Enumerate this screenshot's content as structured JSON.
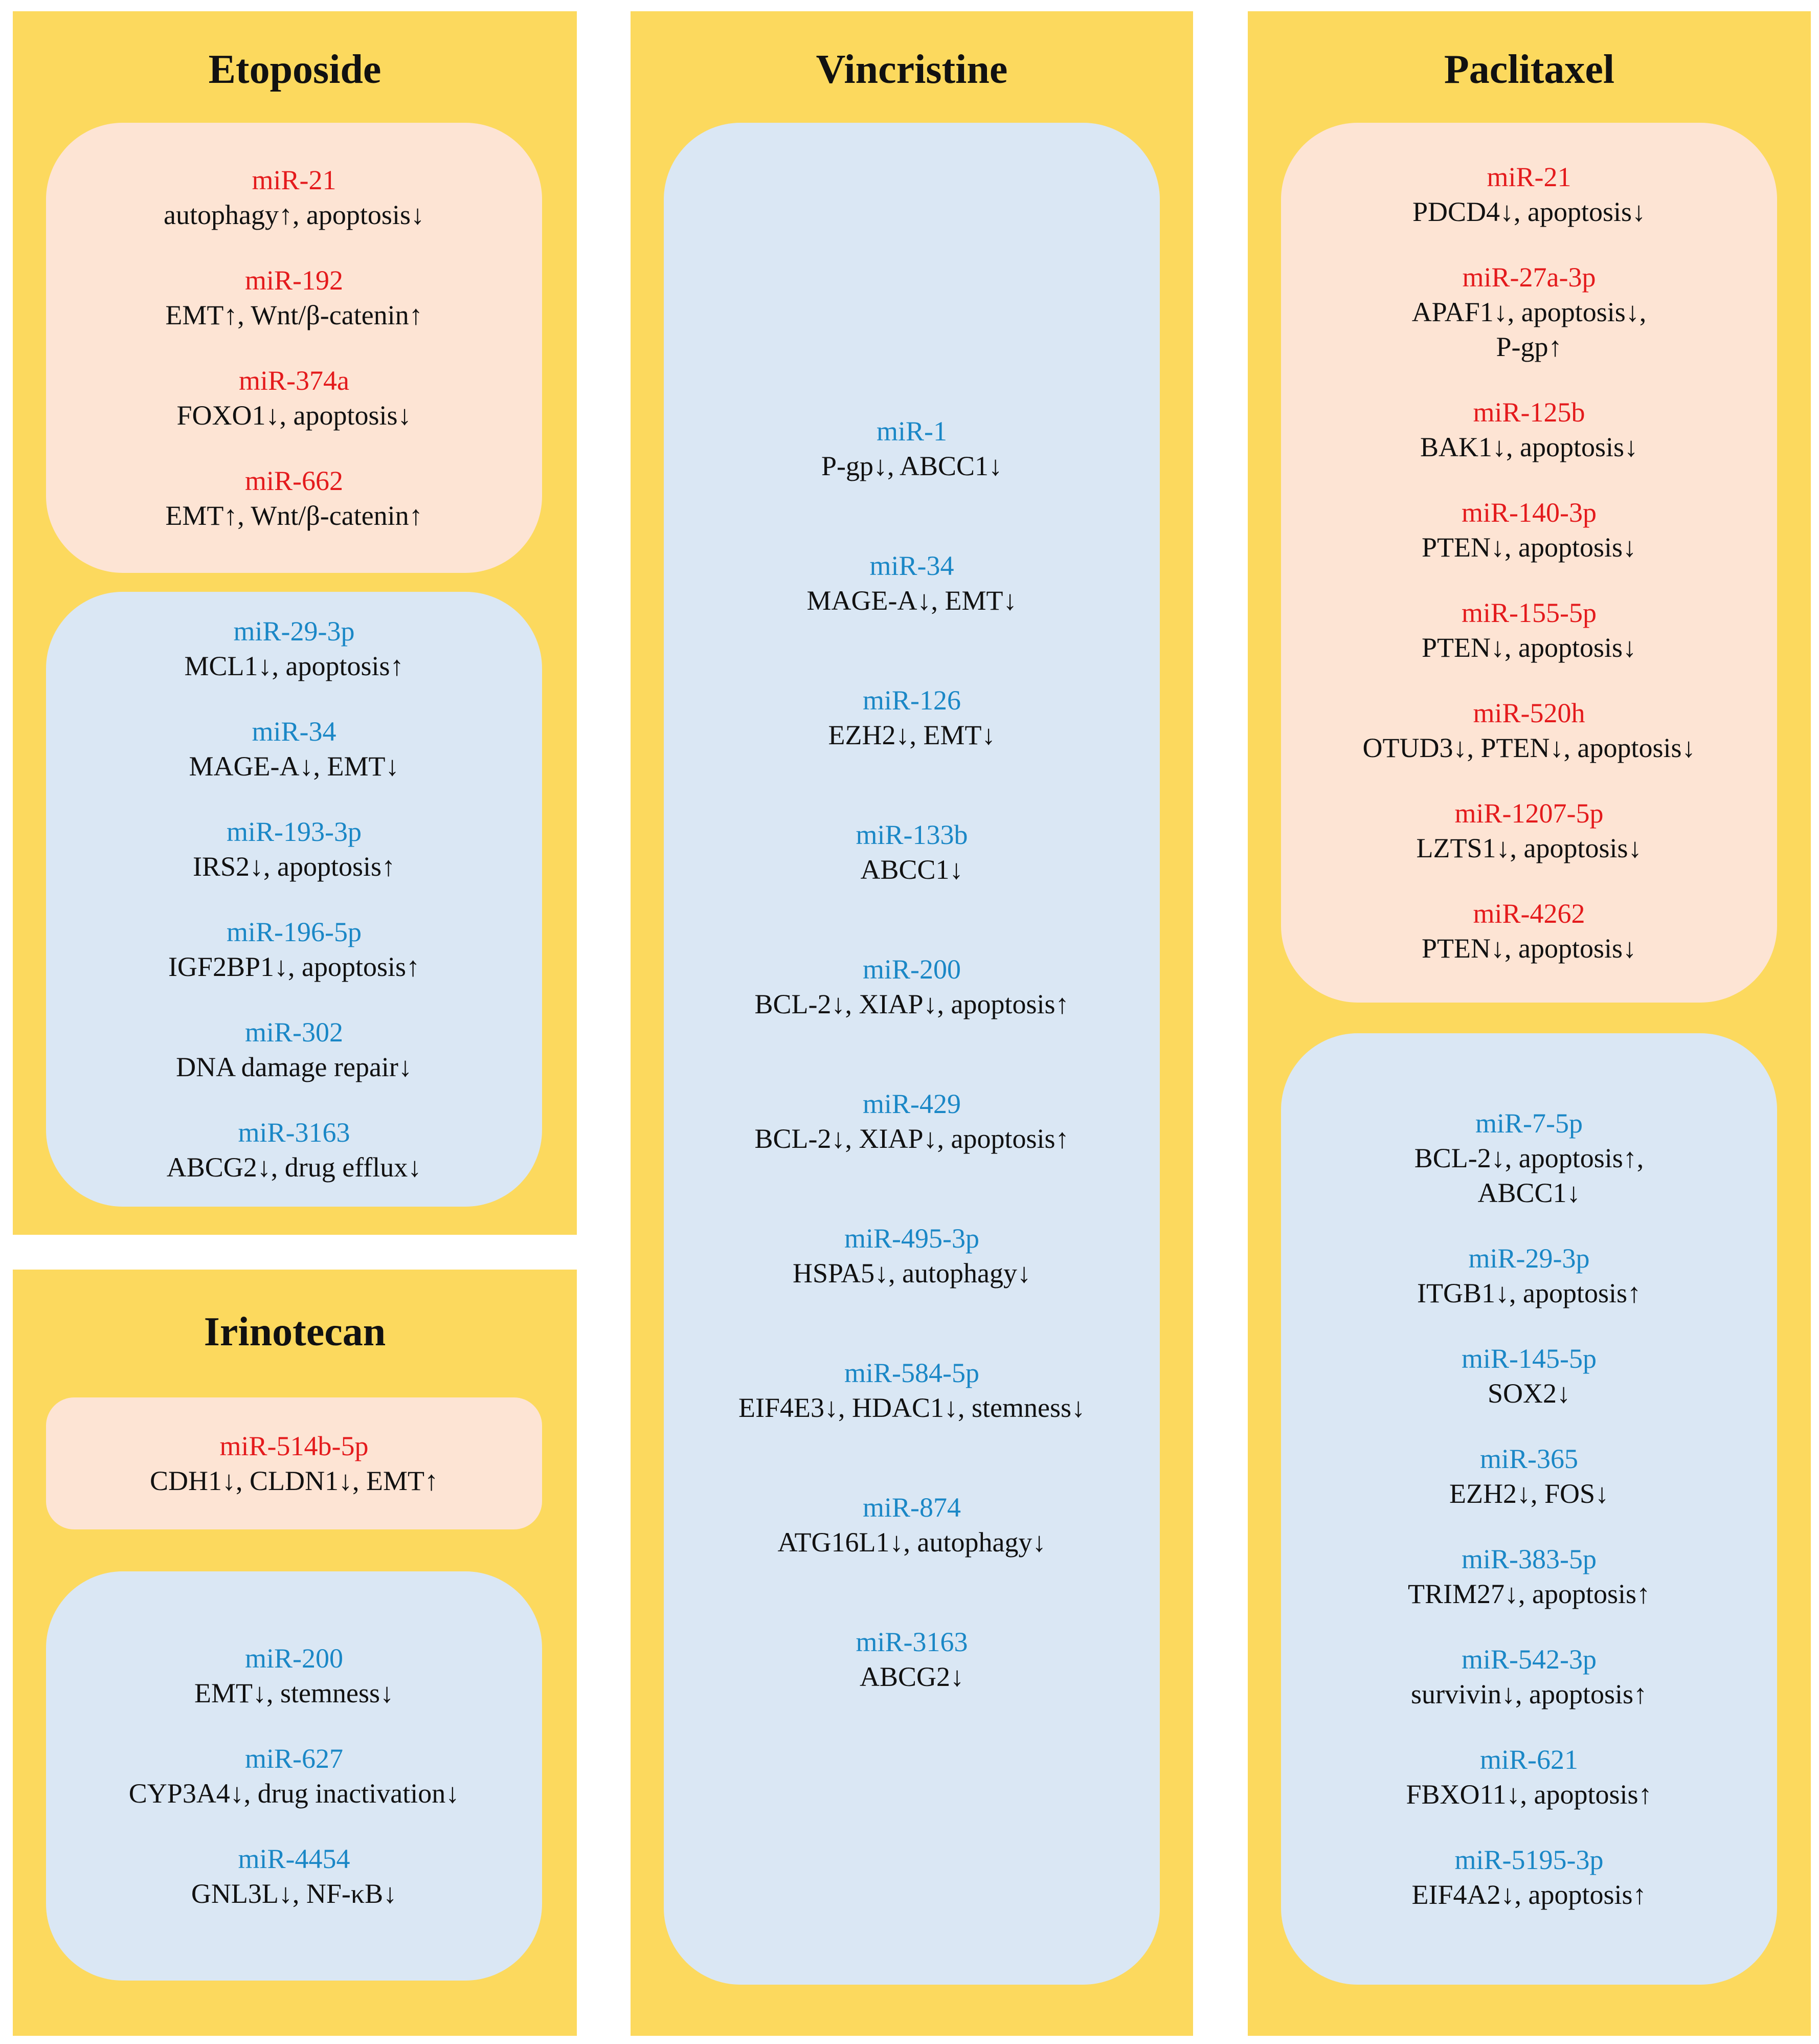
{
  "colors": {
    "panel": "#FCD95E",
    "up_box": "#FDE4D4",
    "down_box": "#DAE7F4",
    "up_text": "#E41A1C",
    "down_text": "#1A87C6"
  },
  "etoposide": {
    "title": "Etoposide",
    "up": [
      {
        "mir": "miR-21",
        "effect": [
          "autophagy↑, apoptosis↓"
        ]
      },
      {
        "mir": "miR-192",
        "effect": [
          "EMT↑, Wnt/β-catenin↑"
        ]
      },
      {
        "mir": "miR-374a",
        "effect": [
          "FOXO1↓, apoptosis↓"
        ]
      },
      {
        "mir": "miR-662",
        "effect": [
          "EMT↑, Wnt/β-catenin↑"
        ]
      }
    ],
    "down": [
      {
        "mir": "miR-29-3p",
        "effect": [
          "MCL1↓, apoptosis↑"
        ]
      },
      {
        "mir": "miR-34",
        "effect": [
          "MAGE-A↓, EMT↓"
        ]
      },
      {
        "mir": "miR-193-3p",
        "effect": [
          "IRS2↓, apoptosis↑"
        ]
      },
      {
        "mir": "miR-196-5p",
        "effect": [
          "IGF2BP1↓, apoptosis↑"
        ]
      },
      {
        "mir": "miR-302",
        "effect": [
          "DNA damage repair↓"
        ]
      },
      {
        "mir": "miR-3163",
        "effect": [
          "ABCG2↓, drug efflux↓"
        ]
      }
    ]
  },
  "irinotecan": {
    "title": "Irinotecan",
    "up": [
      {
        "mir": "miR-514b-5p",
        "effect": [
          "CDH1↓, CLDN1↓, EMT↑"
        ]
      }
    ],
    "down": [
      {
        "mir": "miR-200",
        "effect": [
          "EMT↓, stemness↓"
        ]
      },
      {
        "mir": "miR-627",
        "effect": [
          "CYP3A4↓, drug inactivation↓"
        ]
      },
      {
        "mir": "miR-4454",
        "effect": [
          "GNL3L↓, NF-κB↓"
        ]
      }
    ]
  },
  "vincristine": {
    "title": "Vincristine",
    "down": [
      {
        "mir": "miR-1",
        "effect": [
          "P-gp↓, ABCC1↓"
        ]
      },
      {
        "mir": "miR-34",
        "effect": [
          "MAGE-A↓, EMT↓"
        ]
      },
      {
        "mir": "miR-126",
        "effect": [
          "EZH2↓, EMT↓"
        ]
      },
      {
        "mir": "miR-133b",
        "effect": [
          "ABCC1↓"
        ]
      },
      {
        "mir": "miR-200",
        "effect": [
          "BCL-2↓, XIAP↓, apoptosis↑"
        ]
      },
      {
        "mir": "miR-429",
        "effect": [
          "BCL-2↓, XIAP↓, apoptosis↑"
        ]
      },
      {
        "mir": "miR-495-3p",
        "effect": [
          "HSPA5↓, autophagy↓"
        ]
      },
      {
        "mir": "miR-584-5p",
        "effect": [
          "EIF4E3↓, HDAC1↓, stemness↓"
        ]
      },
      {
        "mir": "miR-874",
        "effect": [
          "ATG16L1↓, autophagy↓"
        ]
      },
      {
        "mir": "miR-3163",
        "effect": [
          "ABCG2↓"
        ]
      }
    ]
  },
  "paclitaxel": {
    "title": "Paclitaxel",
    "up": [
      {
        "mir": "miR-21",
        "effect": [
          "PDCD4↓, apoptosis↓"
        ]
      },
      {
        "mir": "miR-27a-3p",
        "effect": [
          "APAF1↓, apoptosis↓,",
          "P-gp↑"
        ]
      },
      {
        "mir": "miR-125b",
        "effect": [
          "BAK1↓, apoptosis↓"
        ]
      },
      {
        "mir": "miR-140-3p",
        "effect": [
          "PTEN↓, apoptosis↓"
        ]
      },
      {
        "mir": "miR-155-5p",
        "effect": [
          "PTEN↓, apoptosis↓"
        ]
      },
      {
        "mir": "miR-520h",
        "effect": [
          "OTUD3↓, PTEN↓, apoptosis↓"
        ]
      },
      {
        "mir": "miR-1207-5p",
        "effect": [
          "LZTS1↓, apoptosis↓"
        ]
      },
      {
        "mir": "miR-4262",
        "effect": [
          "PTEN↓, apoptosis↓"
        ]
      }
    ],
    "down": [
      {
        "mir": "miR-7-5p",
        "effect": [
          "BCL-2↓, apoptosis↑,",
          "ABCC1↓"
        ]
      },
      {
        "mir": "miR-29-3p",
        "effect": [
          "ITGB1↓, apoptosis↑"
        ]
      },
      {
        "mir": "miR-145-5p",
        "effect": [
          "SOX2↓"
        ]
      },
      {
        "mir": "miR-365",
        "effect": [
          "EZH2↓, FOS↓"
        ]
      },
      {
        "mir": "miR-383-5p",
        "effect": [
          "TRIM27↓, apoptosis↑"
        ]
      },
      {
        "mir": "miR-542-3p",
        "effect": [
          "survivin↓, apoptosis↑"
        ]
      },
      {
        "mir": "miR-621",
        "effect": [
          "FBXO11↓, apoptosis↑"
        ]
      },
      {
        "mir": "miR-5195-3p",
        "effect": [
          "EIF4A2↓, apoptosis↑"
        ]
      }
    ]
  }
}
